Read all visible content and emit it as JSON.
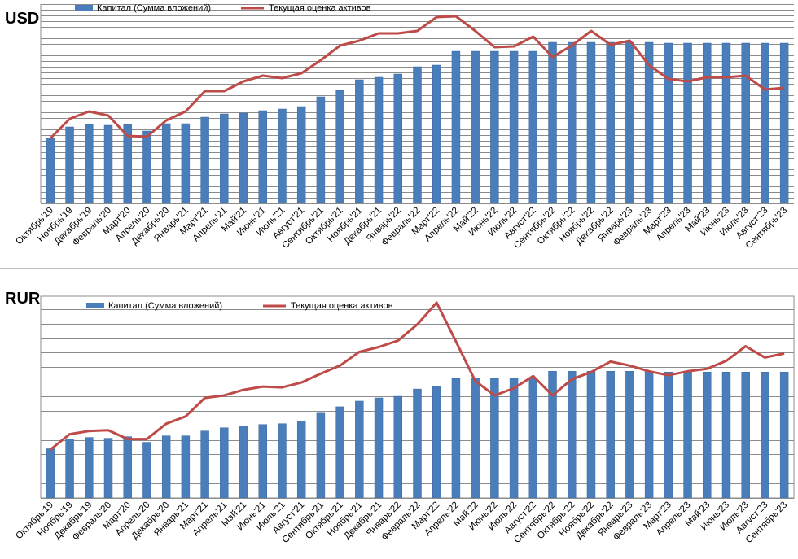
{
  "chart_data": [
    {
      "type": "bar",
      "title": "USD",
      "categories": [
        "Октябрь'19",
        "Ноябрь'19",
        "Декабрь'19",
        "Февраль'20",
        "Март'20",
        "Апрель'20",
        "Декабрь'20",
        "Январь'21",
        "Март'21",
        "Апрель'21",
        "Май'21",
        "Июнь'21",
        "Июль'21",
        "Август'21",
        "Сентябрь'21",
        "Октябрь'21",
        "Ноябрь'21",
        "Декабрь'21",
        "Январь'22",
        "Февраль'22",
        "Март'22",
        "Апрель'22",
        "Май'22",
        "Июнь'22",
        "Июль'22",
        "Август'22",
        "Сентябрь'22",
        "Октябрь'22",
        "Ноябрь'22",
        "Декабрь'22",
        "Январь'23",
        "Февраль'23",
        "Март'23",
        "Апрель'23",
        "Май'23",
        "Июнь'23",
        "Июль'23",
        "Август'23",
        "Сентябрь'23"
      ],
      "series": [
        {
          "name": "Капитал  (Сумма вложений)",
          "kind": "bar",
          "values": [
            80,
            94,
            97,
            96,
            97,
            89,
            98,
            98,
            106,
            110,
            111,
            114,
            116,
            119,
            131,
            139,
            152,
            155,
            159,
            168,
            170,
            187,
            187,
            187,
            187,
            187,
            198,
            198,
            198,
            198,
            198,
            198,
            197,
            197,
            197,
            197,
            197,
            197,
            197
          ]
        },
        {
          "name": "Текущая оценка активов",
          "kind": "line",
          "values": [
            80,
            104,
            113,
            108,
            83,
            82,
            102,
            113,
            138,
            138,
            150,
            157,
            154,
            160,
            176,
            194,
            200,
            209,
            209,
            212,
            229,
            230,
            212,
            192,
            193,
            205,
            180,
            194,
            212,
            195,
            200,
            170,
            153,
            150,
            155,
            155,
            157,
            140,
            142
          ]
        }
      ],
      "ylim": [
        0,
        245
      ],
      "grid": true,
      "legend": "top"
    },
    {
      "type": "bar",
      "title": "RUR",
      "categories": [
        "Октябрь'19",
        "Ноябрь'19",
        "Декабрь'19",
        "Февраль'20",
        "Март'20",
        "Апрель'20",
        "Декабрь'20",
        "Январь'21",
        "Март'21",
        "Апрель'21",
        "Май'21",
        "Июнь'21",
        "Июль'21",
        "Август'21",
        "Сентябрь'21",
        "Октябрь'21",
        "Ноябрь'21",
        "Декабрь'21",
        "Январь'22",
        "Февраль'22",
        "Март'22",
        "Апрель'22",
        "Май'22",
        "Июнь'22",
        "Июль'22",
        "Август'22",
        "Сентябрь'22",
        "Октябрь'22",
        "Ноябрь'22",
        "Декабрь'22",
        "Январь'23",
        "Февраль'23",
        "Март'23",
        "Апрель'23",
        "Май'23",
        "Июнь'23",
        "Июль'23",
        "Август'23",
        "Сентябрь'23"
      ],
      "series": [
        {
          "name": "Капитал  (Сумма вложений)",
          "kind": "bar",
          "values": [
            61,
            73,
            75,
            74,
            76,
            69,
            77,
            77,
            83,
            87,
            89,
            91,
            92,
            95,
            106,
            113,
            120,
            124,
            126,
            135,
            138,
            148,
            148,
            148,
            148,
            148,
            157,
            157,
            157,
            157,
            157,
            157,
            156,
            156,
            156,
            156,
            156,
            156,
            156
          ]
        },
        {
          "name": "Текущая оценка активов",
          "kind": "line",
          "values": [
            60,
            79,
            83,
            84,
            73,
            73,
            92,
            101,
            124,
            127,
            134,
            138,
            137,
            143,
            154,
            164,
            181,
            187,
            195,
            215,
            242,
            194,
            145,
            127,
            136,
            151,
            127,
            147,
            156,
            169,
            164,
            157,
            152,
            157,
            160,
            170,
            188,
            174,
            179
          ]
        }
      ],
      "ylim": [
        0,
        250
      ],
      "grid": true,
      "legend": "top"
    }
  ]
}
